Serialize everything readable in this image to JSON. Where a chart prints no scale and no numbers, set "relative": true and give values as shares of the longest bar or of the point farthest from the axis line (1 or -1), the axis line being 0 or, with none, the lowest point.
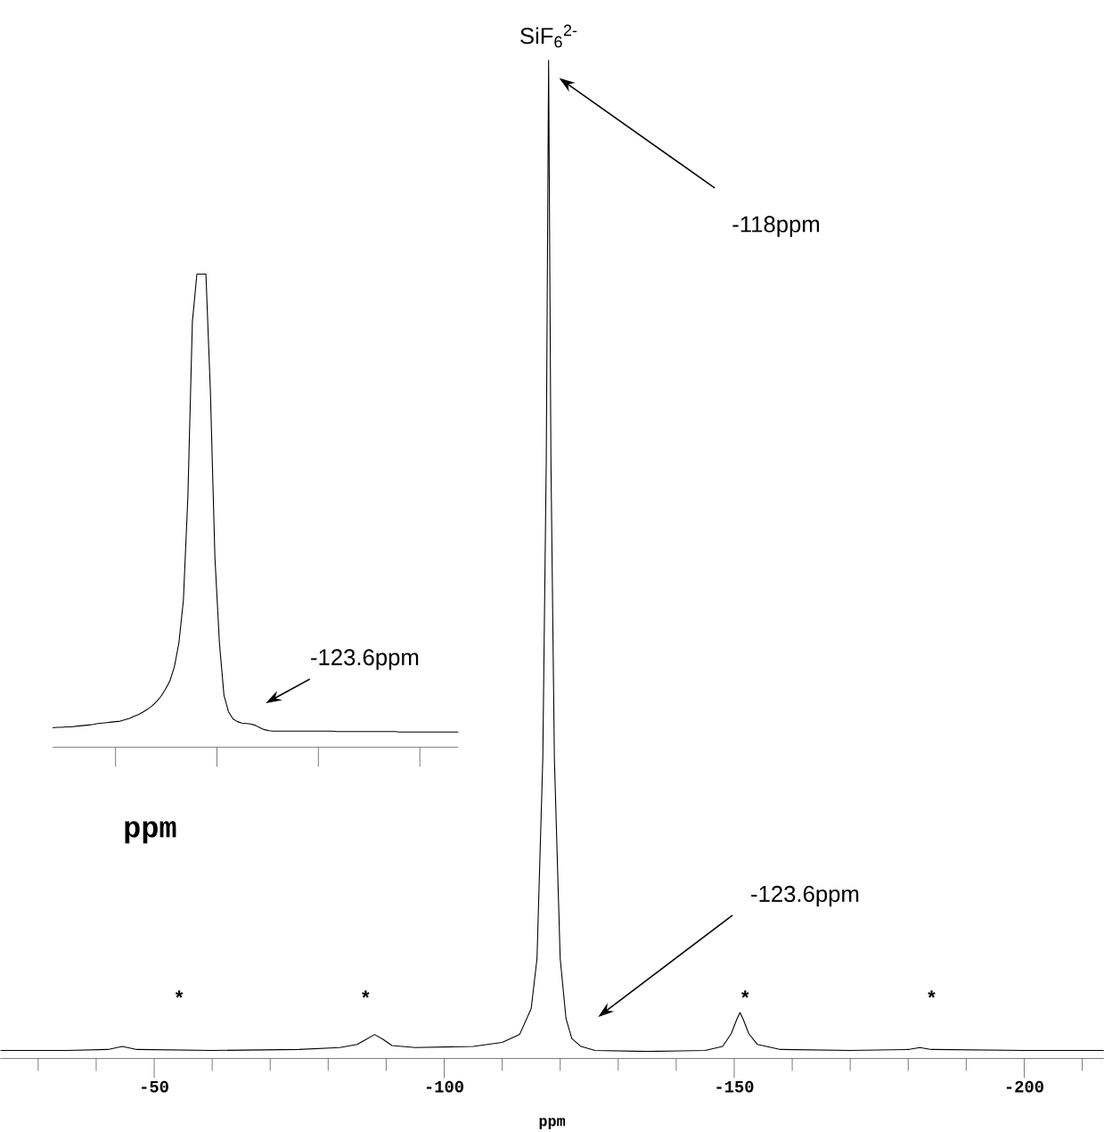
{
  "chart_data": [
    {
      "type": "line",
      "relative": true,
      "xlabel": "ppm",
      "xlim": [
        -23.5,
        -213.7
      ],
      "xticks": [
        {
          "value": -30,
          "label": null
        },
        {
          "value": -40,
          "label": null
        },
        -50,
        {
          "value": -60,
          "label": null
        },
        {
          "value": -70,
          "label": null
        },
        {
          "value": -80,
          "label": null
        },
        {
          "value": -90,
          "label": null
        },
        -100,
        {
          "value": -110,
          "label": null
        },
        {
          "value": -120,
          "label": null
        },
        {
          "value": -130,
          "label": null
        },
        {
          "value": -140,
          "label": null
        },
        -150,
        {
          "value": -160,
          "label": null
        },
        {
          "value": -170,
          "label": null
        },
        {
          "value": -180,
          "label": null
        },
        {
          "value": -190,
          "label": null
        },
        -200,
        {
          "value": -210,
          "label": null
        }
      ],
      "x": [
        -23.5,
        -35,
        -42,
        -44.5,
        -47,
        -60,
        -75,
        -82,
        -85,
        -86.5,
        -88,
        -89.5,
        -91,
        -95,
        -105,
        -110,
        -113,
        -115,
        -116,
        -117,
        -117.6,
        -118,
        -118.4,
        -119,
        -120,
        -121,
        -122,
        -123.6,
        -126,
        -135,
        -145,
        -148,
        -149.5,
        -150.5,
        -151,
        -151.5,
        -152.5,
        -154,
        -158,
        -170,
        -180,
        -182,
        -184,
        -200,
        -213.7
      ],
      "series": [
        {
          "color": "#000000",
          "values": [
            0.008,
            0.008,
            0.009,
            0.012,
            0.009,
            0.008,
            0.009,
            0.011,
            0.014,
            0.019,
            0.024,
            0.019,
            0.013,
            0.011,
            0.012,
            0.016,
            0.024,
            0.05,
            0.1,
            0.3,
            0.6,
            1,
            0.6,
            0.3,
            0.1,
            0.04,
            0.02,
            0.012,
            0.008,
            0.007,
            0.008,
            0.012,
            0.025,
            0.04,
            0.046,
            0.04,
            0.025,
            0.014,
            0.009,
            0.008,
            0.009,
            0.011,
            0.009,
            0.008,
            0.008
          ]
        }
      ],
      "annotations": [
        {
          "text": "SiF$_{6}$$^{2-}$",
          "x": -118,
          "y": 1
        },
        "-118ppm",
        "-123.6ppm",
        "*",
        "*",
        "*",
        "*"
      ]
    },
    {
      "type": "line",
      "relative": true,
      "xlabel": "ppm",
      "categories": [
        null,
        null,
        null,
        null,
        null,
        null,
        null,
        null,
        null,
        null,
        null,
        null,
        null,
        null,
        null,
        null,
        null,
        null,
        null,
        null,
        null,
        null,
        null,
        null,
        null,
        null,
        null,
        null,
        null,
        null,
        null,
        null,
        null,
        null,
        null,
        null,
        null,
        null,
        null,
        null,
        null,
        null,
        null,
        null,
        null,
        null,
        null,
        null,
        null,
        null,
        null,
        null,
        null,
        null,
        null,
        null,
        null,
        null,
        null,
        null,
        null,
        null,
        null,
        null,
        null,
        null,
        null,
        null,
        null,
        null,
        null,
        null,
        null,
        null,
        null,
        null,
        null,
        null,
        null,
        null,
        null,
        null,
        null,
        null,
        null,
        null,
        null,
        null,
        null,
        null,
        null
      ],
      "series": [
        {
          "color": "#000000",
          "values": [
            0.041,
            0.042,
            0.042,
            0.043,
            0.043,
            0.044,
            0.045,
            0.046,
            0.047,
            0.048,
            0.05,
            0.051,
            0.052,
            0.053,
            0.054,
            0.055,
            0.058,
            0.061,
            0.065,
            0.069,
            0.074,
            0.08,
            0.087,
            0.096,
            0.107,
            0.122,
            0.14,
            0.17,
            0.22,
            0.31,
            0.53,
            0.9,
            1,
            1,
            1,
            0.75,
            0.4,
            0.22,
            0.11,
            0.075,
            0.06,
            0.054,
            0.051,
            0.05,
            0.049,
            0.046,
            0.041,
            0.037,
            0.035,
            0.034,
            0.034,
            0.034,
            0.034,
            0.034,
            0.034,
            0.034,
            0.034,
            0.034,
            0.034,
            0.034,
            0.034,
            0.034,
            0.034,
            0.033,
            0.033,
            0.033,
            0.033,
            0.033,
            0.033,
            0.033,
            0.033,
            0.033,
            0.033,
            0.033,
            0.033,
            0.033,
            0.033,
            0.032,
            0.032,
            0.032,
            0.032,
            0.032,
            0.032,
            0.032,
            0.032,
            0.032,
            0.032,
            0.032,
            0.032,
            0.032,
            0.032
          ]
        }
      ],
      "annotations": [
        "-123.6ppm"
      ]
    }
  ]
}
